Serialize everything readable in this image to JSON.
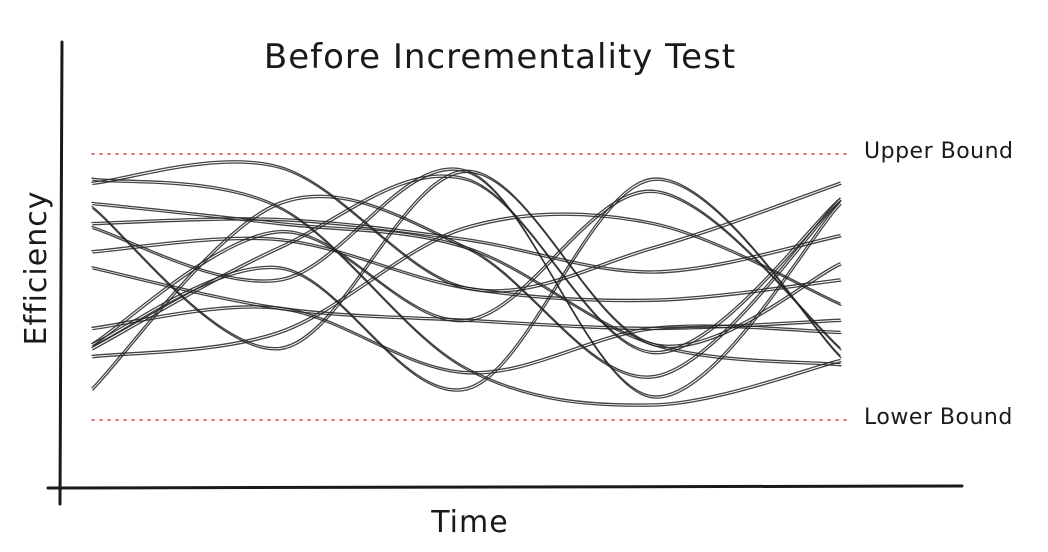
{
  "chart_data": {
    "type": "line",
    "title": "Before Incrementality Test",
    "xlabel": "Time",
    "ylabel": "Efficiency",
    "xlim": [
      0,
      1
    ],
    "ylim": [
      0,
      1
    ],
    "grid": false,
    "legend": "none",
    "reference_lines": [
      {
        "label": "Upper Bound",
        "y": 0.83
      },
      {
        "label": "Lower Bound",
        "y": 0.17
      }
    ],
    "colors": {
      "lines": "#222222",
      "bounds": "#e03a4a",
      "axes": "#1a1a1a"
    },
    "series": [
      {
        "x": [
          0.0,
          0.25,
          0.5,
          0.75,
          1.0
        ],
        "y": [
          0.76,
          0.8,
          0.5,
          0.6,
          0.76
        ]
      },
      {
        "x": [
          0.0,
          0.25,
          0.5,
          0.75,
          1.0
        ],
        "y": [
          0.71,
          0.66,
          0.6,
          0.36,
          0.31
        ]
      },
      {
        "x": [
          0.0,
          0.25,
          0.5,
          0.75,
          1.0
        ],
        "y": [
          0.7,
          0.35,
          0.79,
          0.36,
          0.56
        ]
      },
      {
        "x": [
          0.0,
          0.25,
          0.5,
          0.75,
          1.0
        ],
        "y": [
          0.66,
          0.67,
          0.62,
          0.54,
          0.63
        ]
      },
      {
        "x": [
          0.0,
          0.25,
          0.5,
          0.75,
          1.0
        ],
        "y": [
          0.59,
          0.62,
          0.5,
          0.47,
          0.52
        ]
      },
      {
        "x": [
          0.0,
          0.25,
          0.5,
          0.75,
          1.0
        ],
        "y": [
          0.4,
          0.45,
          0.29,
          0.4,
          0.39
        ]
      },
      {
        "x": [
          0.0,
          0.25,
          0.5,
          0.75,
          1.0
        ],
        "y": [
          0.35,
          0.6,
          0.77,
          0.34,
          0.72
        ]
      },
      {
        "x": [
          0.0,
          0.25,
          0.5,
          0.75,
          1.0
        ],
        "y": [
          0.36,
          0.55,
          0.25,
          0.77,
          0.33
        ]
      },
      {
        "x": [
          0.0,
          0.25,
          0.5,
          0.75,
          1.0
        ],
        "y": [
          0.77,
          0.7,
          0.3,
          0.21,
          0.32
        ]
      },
      {
        "x": [
          0.0,
          0.25,
          0.5,
          0.75,
          1.0
        ],
        "y": [
          0.25,
          0.71,
          0.6,
          0.28,
          0.72
        ]
      },
      {
        "x": [
          0.0,
          0.25,
          0.5,
          0.75,
          1.0
        ],
        "y": [
          0.33,
          0.39,
          0.65,
          0.66,
          0.46
        ]
      },
      {
        "x": [
          0.0,
          0.25,
          0.5,
          0.75,
          1.0
        ],
        "y": [
          0.55,
          0.45,
          0.42,
          0.4,
          0.42
        ]
      },
      {
        "x": [
          0.0,
          0.25,
          0.5,
          0.75,
          1.0
        ],
        "y": [
          0.65,
          0.52,
          0.79,
          0.23,
          0.71
        ]
      },
      {
        "x": [
          0.0,
          0.25,
          0.5,
          0.75,
          1.0
        ],
        "y": [
          0.36,
          0.64,
          0.42,
          0.74,
          0.35
        ]
      }
    ]
  }
}
